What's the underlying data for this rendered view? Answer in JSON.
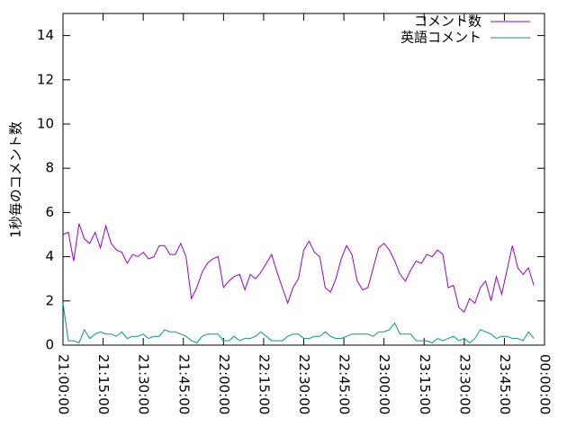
{
  "chart_data": {
    "type": "line",
    "y_label": "1秒毎のコメント数",
    "x": [
      "21:00:00",
      "21:02:00",
      "21:04:00",
      "21:06:00",
      "21:08:00",
      "21:10:00",
      "21:12:00",
      "21:14:00",
      "21:16:00",
      "21:18:00",
      "21:20:00",
      "21:22:00",
      "21:24:00",
      "21:26:00",
      "21:28:00",
      "21:30:00",
      "21:32:00",
      "21:34:00",
      "21:36:00",
      "21:38:00",
      "21:40:00",
      "21:42:00",
      "21:44:00",
      "21:46:00",
      "21:48:00",
      "21:50:00",
      "21:52:00",
      "21:54:00",
      "21:56:00",
      "21:58:00",
      "22:00:00",
      "22:02:00",
      "22:04:00",
      "22:06:00",
      "22:08:00",
      "22:10:00",
      "22:12:00",
      "22:14:00",
      "22:16:00",
      "22:18:00",
      "22:20:00",
      "22:22:00",
      "22:24:00",
      "22:26:00",
      "22:28:00",
      "22:30:00",
      "22:32:00",
      "22:34:00",
      "22:36:00",
      "22:38:00",
      "22:40:00",
      "22:42:00",
      "22:44:00",
      "22:46:00",
      "22:48:00",
      "22:50:00",
      "22:52:00",
      "22:54:00",
      "22:56:00",
      "22:58:00",
      "23:00:00",
      "23:02:00",
      "23:04:00",
      "23:06:00",
      "23:08:00",
      "23:10:00",
      "23:12:00",
      "23:14:00",
      "23:16:00",
      "23:18:00",
      "23:20:00",
      "23:22:00",
      "23:24:00",
      "23:26:00",
      "23:28:00",
      "23:30:00",
      "23:32:00",
      "23:34:00",
      "23:36:00",
      "23:38:00",
      "23:40:00",
      "23:42:00",
      "23:44:00",
      "23:46:00",
      "23:48:00",
      "23:50:00",
      "23:52:00",
      "23:54:00",
      "23:56:00"
    ],
    "series": [
      {
        "name": "コメント数",
        "color": "#9400d3",
        "values": [
          5.0,
          5.1,
          3.8,
          5.5,
          4.8,
          4.6,
          5.1,
          4.4,
          5.4,
          4.6,
          4.3,
          4.2,
          3.7,
          4.1,
          4.0,
          4.2,
          3.9,
          4.0,
          4.5,
          4.5,
          4.1,
          4.1,
          4.6,
          4.0,
          2.1,
          2.6,
          3.3,
          3.7,
          3.9,
          4.0,
          2.6,
          2.9,
          3.1,
          3.2,
          2.5,
          3.2,
          3.0,
          3.3,
          3.7,
          4.1,
          3.3,
          2.6,
          1.9,
          2.6,
          3.0,
          4.3,
          4.7,
          4.2,
          4.0,
          2.6,
          2.4,
          3.0,
          3.9,
          4.5,
          4.1,
          2.9,
          2.5,
          2.6,
          3.5,
          4.4,
          4.6,
          4.3,
          3.8,
          3.2,
          2.9,
          3.4,
          3.8,
          3.7,
          4.1,
          4.0,
          4.3,
          4.1,
          2.6,
          2.7,
          1.7,
          1.5,
          2.1,
          1.9,
          2.6,
          2.9,
          2.0,
          3.1,
          2.3,
          3.4,
          4.5,
          3.5,
          3.2,
          3.5,
          2.7
        ]
      },
      {
        "name": "英語コメント",
        "color": "#009e73",
        "values": [
          1.9,
          0.2,
          0.2,
          0.1,
          0.7,
          0.3,
          0.5,
          0.6,
          0.5,
          0.5,
          0.4,
          0.6,
          0.3,
          0.4,
          0.4,
          0.5,
          0.3,
          0.4,
          0.4,
          0.7,
          0.6,
          0.6,
          0.5,
          0.4,
          0.2,
          0.1,
          0.4,
          0.5,
          0.5,
          0.5,
          0.2,
          0.2,
          0.4,
          0.2,
          0.3,
          0.3,
          0.4,
          0.6,
          0.4,
          0.2,
          0.2,
          0.2,
          0.4,
          0.5,
          0.5,
          0.3,
          0.3,
          0.4,
          0.4,
          0.6,
          0.4,
          0.3,
          0.3,
          0.4,
          0.5,
          0.5,
          0.5,
          0.5,
          0.4,
          0.6,
          0.6,
          0.7,
          1.0,
          0.5,
          0.5,
          0.5,
          0.2,
          0.2,
          0.2,
          0.1,
          0.3,
          0.2,
          0.3,
          0.4,
          0.2,
          0.3,
          0.1,
          0.3,
          0.7,
          0.6,
          0.5,
          0.3,
          0.4,
          0.4,
          0.3,
          0.3,
          0.2,
          0.6,
          0.3
        ]
      }
    ],
    "xlim": [
      "21:00:00",
      "00:00:00"
    ],
    "xticks": [
      "21:00:00",
      "21:15:00",
      "21:30:00",
      "21:45:00",
      "22:00:00",
      "22:15:00",
      "22:30:00",
      "22:45:00",
      "23:00:00",
      "23:15:00",
      "23:30:00",
      "23:45:00",
      "00:00:00"
    ],
    "ylim": [
      0,
      15
    ],
    "yticks": [
      0,
      2,
      4,
      6,
      8,
      10,
      12,
      14
    ],
    "legend": "top-right",
    "grid": false
  }
}
